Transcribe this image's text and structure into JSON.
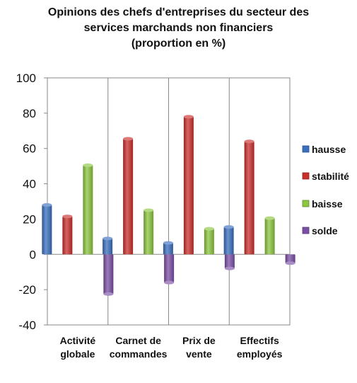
{
  "chart_data": {
    "type": "bar",
    "title_lines": [
      "Opinions des chefs d'entreprises du secteur des",
      "services marchands non financiers",
      "(proportion en %)"
    ],
    "categories": [
      [
        "Activité",
        "globale"
      ],
      [
        "Carnet de",
        "commandes"
      ],
      [
        "Prix de",
        "vente"
      ],
      [
        "Effectifs",
        "employés"
      ]
    ],
    "series": [
      {
        "name": "hausse",
        "color": "#3a6fbf",
        "values": [
          28,
          9,
          6.5,
          15.5
        ]
      },
      {
        "name": "stabilité",
        "color": "#c9302c",
        "values": [
          21.5,
          65.5,
          78,
          64
        ]
      },
      {
        "name": "baisse",
        "color": "#8cc63f",
        "values": [
          50.5,
          25,
          14.5,
          20.5
        ]
      },
      {
        "name": "solde",
        "color": "#7b4fa5",
        "values": [
          -22.5,
          -16,
          -8,
          -5
        ]
      }
    ],
    "ylim": [
      -40,
      100
    ],
    "yticks": [
      -40,
      -20,
      0,
      20,
      40,
      60,
      80,
      100
    ],
    "grid": "vertical category separators",
    "legend_position": "right",
    "xlabel": "",
    "ylabel": ""
  }
}
